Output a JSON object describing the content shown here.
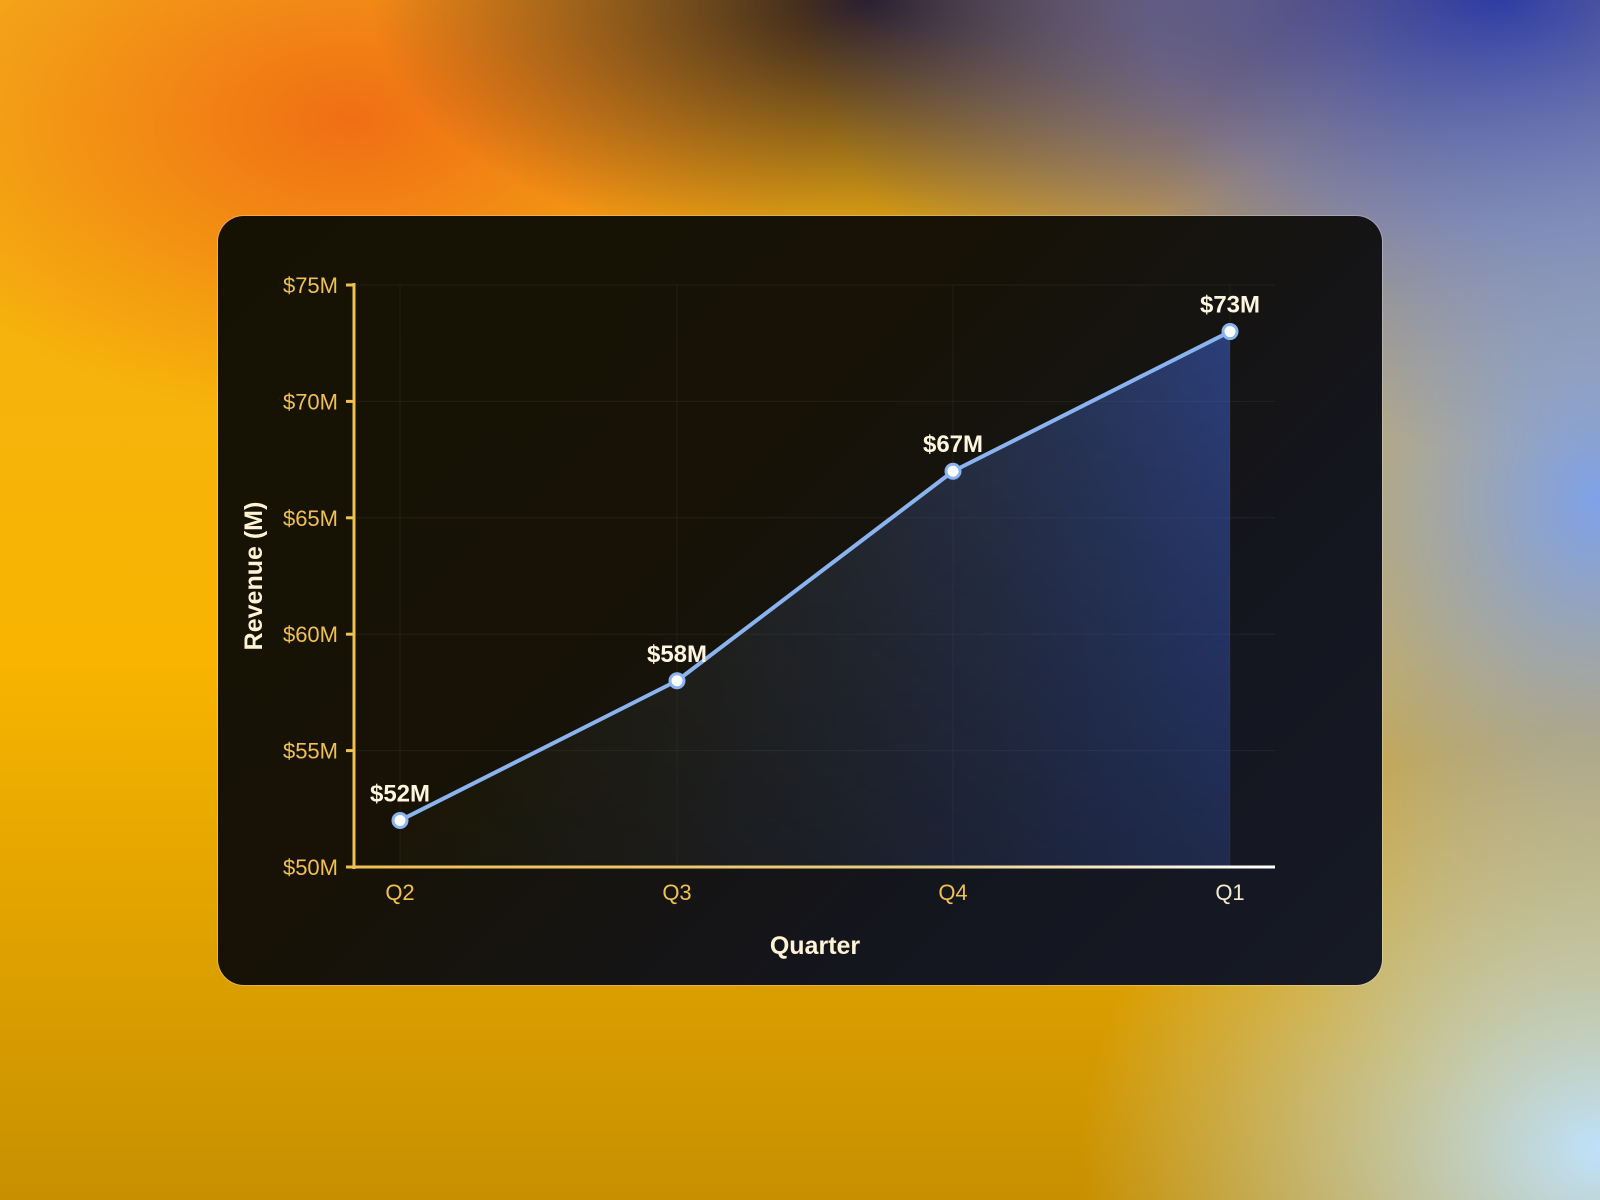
{
  "chart_data": {
    "type": "area",
    "categories": [
      "Q2",
      "Q3",
      "Q4",
      "Q1"
    ],
    "values": [
      52,
      58,
      67,
      73
    ],
    "data_labels": [
      "$52M",
      "$58M",
      "$67M",
      "$73M"
    ],
    "xlabel": "Quarter",
    "ylabel": "Revenue (M)",
    "ylim": [
      50,
      75
    ],
    "yticks": [
      50,
      55,
      60,
      65,
      70,
      75
    ],
    "ytick_labels": [
      "$50M",
      "$55M",
      "$60M",
      "$65M",
      "$70M",
      "$75M"
    ],
    "grid": true,
    "legend": "none",
    "colors": {
      "line": "#8ab4f0",
      "axis": "#f0c050",
      "fill": "#3a5bbf"
    }
  }
}
